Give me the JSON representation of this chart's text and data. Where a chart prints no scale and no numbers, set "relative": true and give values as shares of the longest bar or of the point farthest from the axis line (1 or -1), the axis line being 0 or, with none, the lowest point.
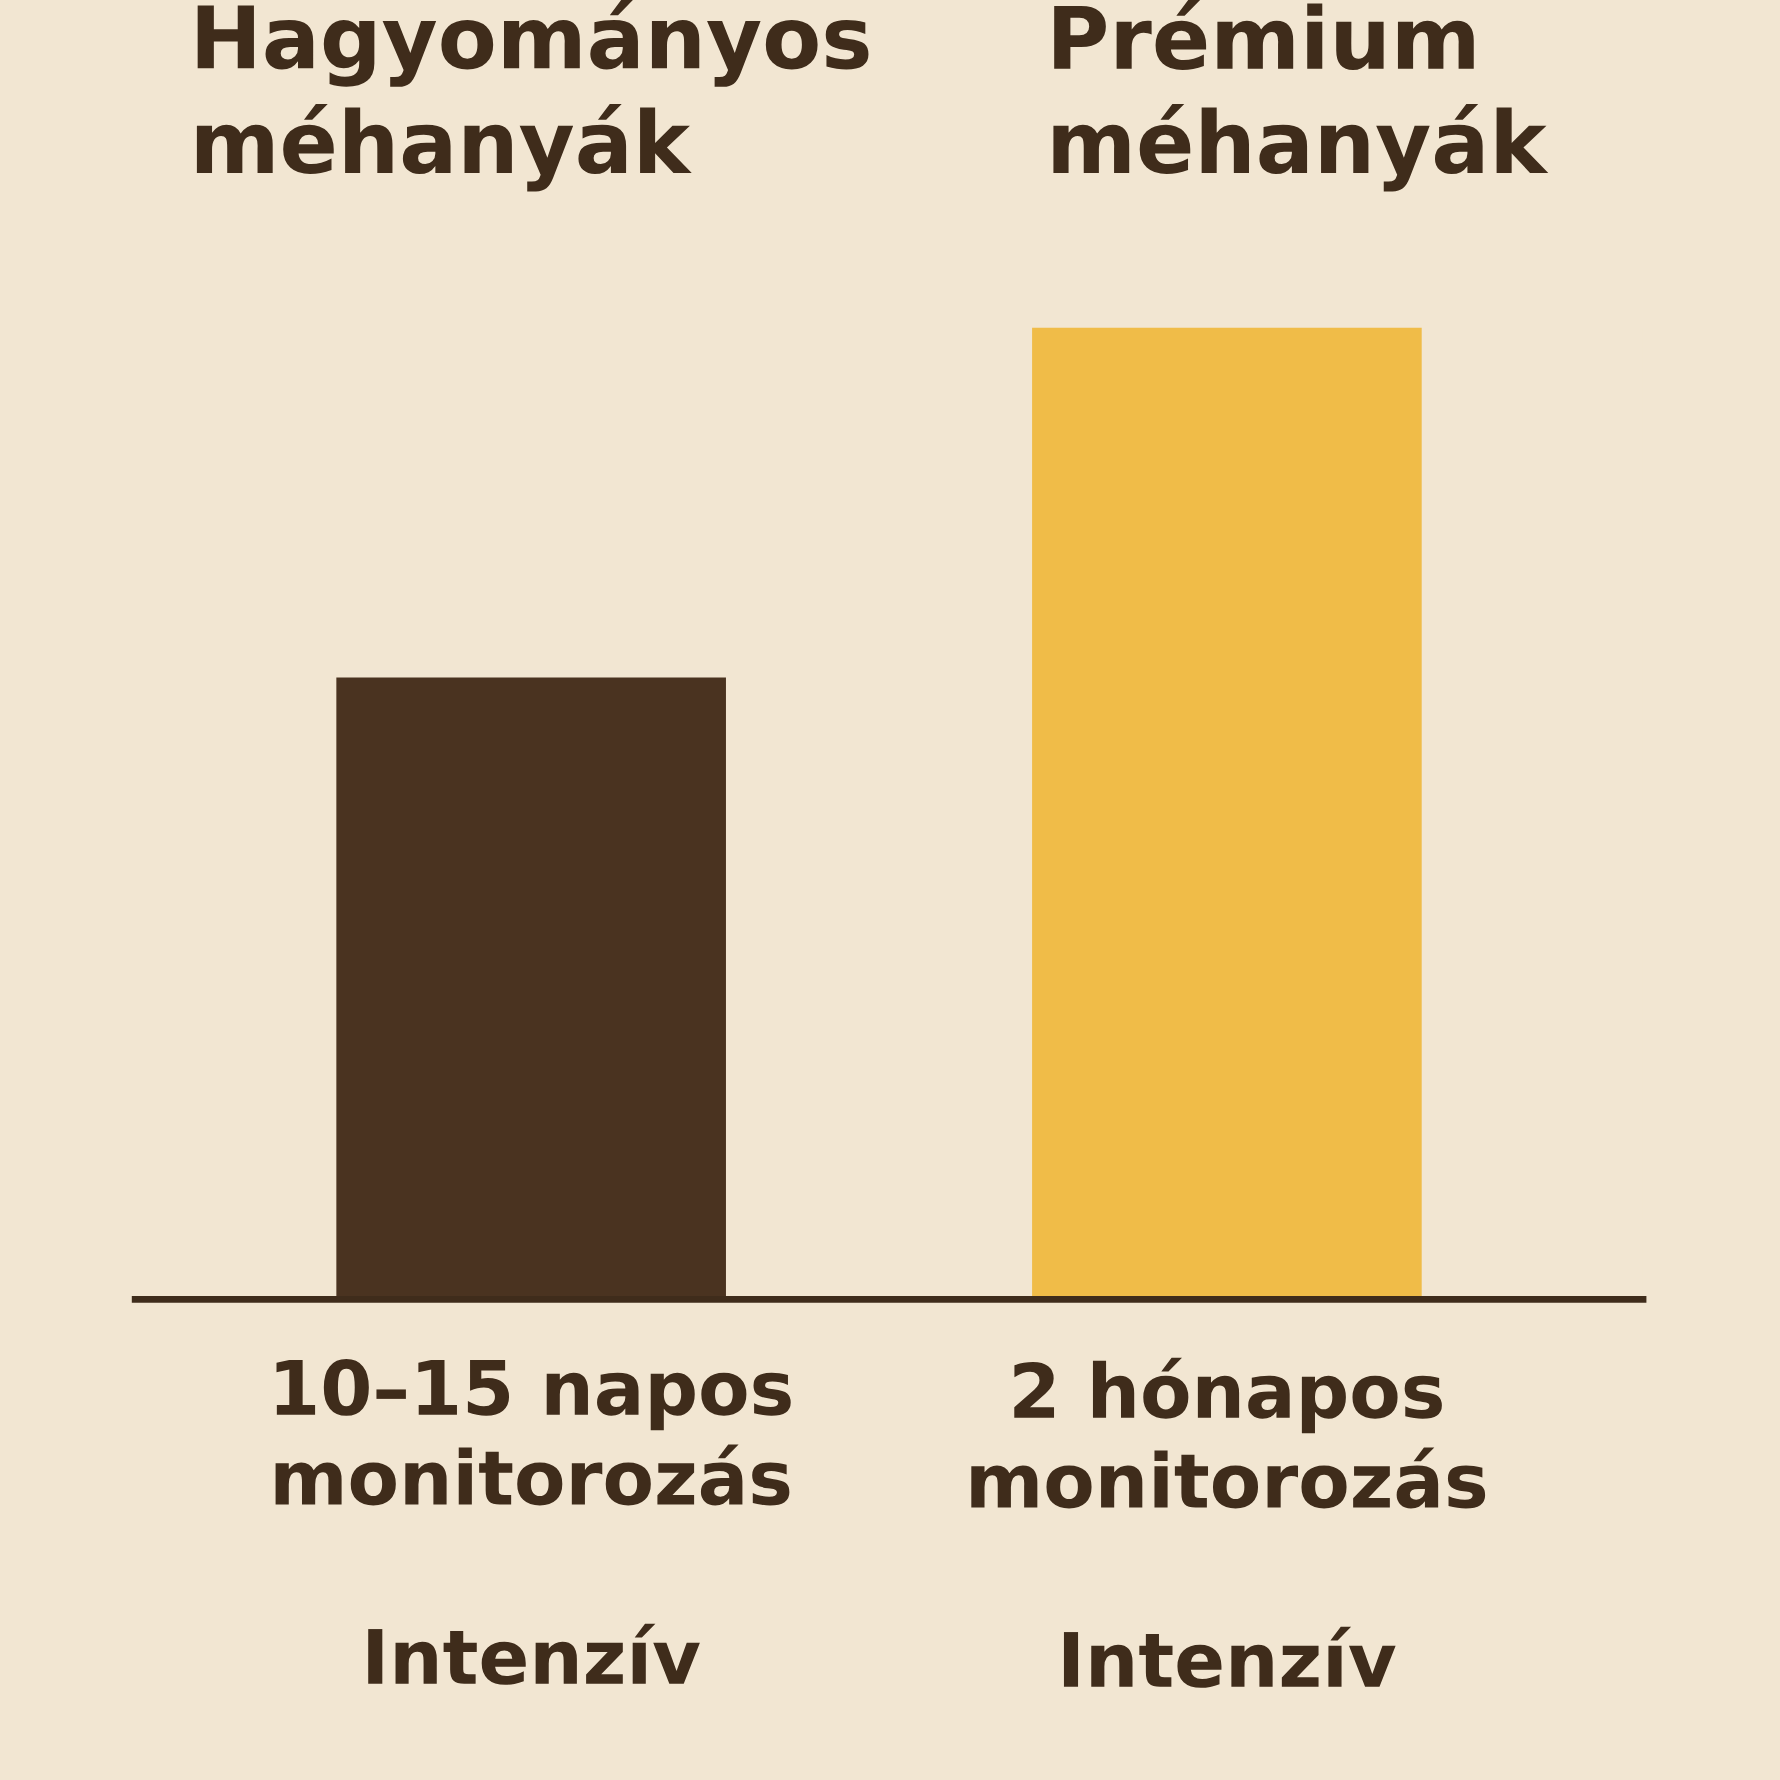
{
  "chart_data": {
    "type": "bar",
    "relative": true,
    "categories": [
      "Hagyományos\nméhanyák",
      "Prémium\nméhanyák"
    ],
    "values": [
      0.64,
      1
    ],
    "colors": [
      "#4a3320",
      "#f0bc48"
    ],
    "annotations": [
      "10–15 napos\nmonitorozás\n\nIntenzív",
      "2 hónapos\nmonitorozás\n\nIntenzív"
    ],
    "legend": false
  }
}
